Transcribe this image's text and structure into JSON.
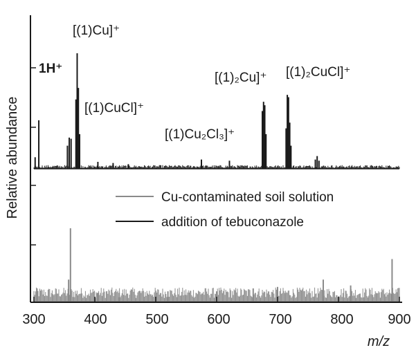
{
  "chart_data": {
    "type": "line",
    "title": "",
    "xlabel": "m/z",
    "ylabel": "Relative abundance",
    "xlim": [
      300,
      900
    ],
    "x_ticks": [
      "300",
      "400",
      "500",
      "600",
      "700",
      "800",
      "900"
    ],
    "grid": false,
    "legend_position": "center-right",
    "colors": {
      "treated": "#1a1a1a",
      "soil": "#8a8a8a",
      "axis": "#1a1a1a"
    },
    "series": [
      {
        "name": "Cu-contaminated soil solution",
        "color": "#8a8a8a",
        "baseline_level": 0.12,
        "peaks": [
          {
            "x": 305,
            "y": 0.18
          },
          {
            "x": 357,
            "y": 0.3
          },
          {
            "x": 360,
            "y": 1.0
          },
          {
            "x": 405,
            "y": 0.12
          },
          {
            "x": 440,
            "y": 0.12
          },
          {
            "x": 520,
            "y": 0.14
          },
          {
            "x": 600,
            "y": 0.14
          },
          {
            "x": 660,
            "y": 0.18
          },
          {
            "x": 700,
            "y": 0.2
          },
          {
            "x": 775,
            "y": 0.3
          },
          {
            "x": 820,
            "y": 0.22
          },
          {
            "x": 888,
            "y": 0.58
          }
        ]
      },
      {
        "name": "addition of tebuconazole",
        "color": "#1a1a1a",
        "baseline_level": 0.02,
        "peaks": [
          {
            "x": 302,
            "y": 0.1
          },
          {
            "x": 308,
            "y": 0.42
          },
          {
            "x": 355,
            "y": 0.2
          },
          {
            "x": 358,
            "y": 0.27
          },
          {
            "x": 361,
            "y": 0.26
          },
          {
            "x": 369,
            "y": 0.6
          },
          {
            "x": 371,
            "y": 1.0
          },
          {
            "x": 373,
            "y": 0.7
          },
          {
            "x": 375,
            "y": 0.3
          },
          {
            "x": 405,
            "y": 0.06
          },
          {
            "x": 430,
            "y": 0.05
          },
          {
            "x": 455,
            "y": 0.04
          },
          {
            "x": 575,
            "y": 0.08
          },
          {
            "x": 621,
            "y": 0.07
          },
          {
            "x": 675,
            "y": 0.5
          },
          {
            "x": 677,
            "y": 0.58
          },
          {
            "x": 679,
            "y": 0.55
          },
          {
            "x": 681,
            "y": 0.3
          },
          {
            "x": 714,
            "y": 0.35
          },
          {
            "x": 716,
            "y": 0.64
          },
          {
            "x": 718,
            "y": 0.62
          },
          {
            "x": 720,
            "y": 0.4
          },
          {
            "x": 722,
            "y": 0.2
          },
          {
            "x": 762,
            "y": 0.08
          },
          {
            "x": 765,
            "y": 0.11
          },
          {
            "x": 768,
            "y": 0.07
          }
        ]
      }
    ],
    "annotations": [
      {
        "x": 328,
        "label": "1H⁺"
      },
      {
        "x": 371,
        "label": "[(1)Cu]⁺"
      },
      {
        "x": 373,
        "label": "[(1)CuCl]⁺"
      },
      {
        "x": 575,
        "label": "[(1)Cu₂Cl₃]⁺"
      },
      {
        "x": 677,
        "label": "[(1)₂Cu]⁺"
      },
      {
        "x": 718,
        "label": "[(1)₂CuCl]⁺"
      }
    ]
  }
}
